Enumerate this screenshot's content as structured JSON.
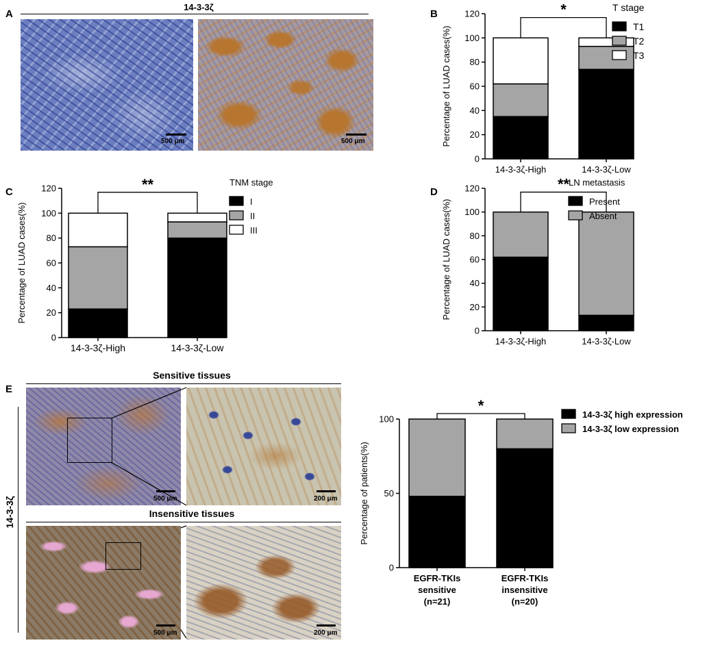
{
  "panel_letters": {
    "A": "A",
    "B": "B",
    "C": "C",
    "D": "D",
    "E": "E"
  },
  "panel_a": {
    "title": "14-3-3ζ",
    "left_scale": "500 μm",
    "right_scale": "500 μm"
  },
  "panel_e": {
    "sensitive_title": "Sensitive tissues",
    "insensitive_title": "Insensitive tissues",
    "side_label": "14-3-3ζ",
    "scales": {
      "s_left": "500 μm",
      "s_right": "200 μm",
      "i_left": "500 μm",
      "i_right": "200 μm"
    }
  },
  "colors": {
    "black": "#000000",
    "gray": "#a5a5a5",
    "white": "#ffffff",
    "ihc_blue": "#5a6fb8",
    "ihc_brown": "#b8742a"
  },
  "chart_data": [
    {
      "id": "B",
      "type": "bar",
      "stacked": true,
      "categories": [
        "14-3-3ζ-High",
        "14-3-3ζ-Low"
      ],
      "series": [
        {
          "name": "T1",
          "color": "#000000",
          "values": [
            35,
            74
          ]
        },
        {
          "name": "T2",
          "color": "#a5a5a5",
          "values": [
            27,
            19
          ]
        },
        {
          "name": "T3",
          "color": "#ffffff",
          "values": [
            38,
            7
          ]
        }
      ],
      "ylabel": "Percentage of LUAD cases(%)",
      "ylim": [
        0,
        120
      ],
      "yticks": [
        0,
        20,
        40,
        60,
        80,
        100,
        120
      ],
      "legend_title": "T stage",
      "significance": "*"
    },
    {
      "id": "C",
      "type": "bar",
      "stacked": true,
      "categories": [
        "14-3-3ζ-High",
        "14-3-3ζ-Low"
      ],
      "series": [
        {
          "name": "I",
          "color": "#000000",
          "values": [
            23,
            80
          ]
        },
        {
          "name": "II",
          "color": "#a5a5a5",
          "values": [
            50,
            13
          ]
        },
        {
          "name": "III",
          "color": "#ffffff",
          "values": [
            27,
            7
          ]
        }
      ],
      "ylabel": "Percentage of LUAD cases(%)",
      "ylim": [
        0,
        120
      ],
      "yticks": [
        0,
        20,
        40,
        60,
        80,
        100,
        120
      ],
      "legend_title": "TNM stage",
      "significance": "**"
    },
    {
      "id": "D",
      "type": "bar",
      "stacked": true,
      "categories": [
        "14-3-3ζ-High",
        "14-3-3ζ-Low"
      ],
      "series": [
        {
          "name": "Present",
          "color": "#000000",
          "values": [
            62,
            13
          ]
        },
        {
          "name": "Absent",
          "color": "#a5a5a5",
          "values": [
            38,
            87
          ]
        }
      ],
      "ylabel": "Percentage of LUAD cases(%)",
      "ylim": [
        0,
        120
      ],
      "yticks": [
        0,
        20,
        40,
        60,
        80,
        100,
        120
      ],
      "legend_title": "LN metastasis",
      "significance": "**"
    },
    {
      "id": "E",
      "type": "bar",
      "stacked": true,
      "categories": [
        [
          "EGFR-TKIs",
          "sensitive",
          "(n=21)"
        ],
        [
          "EGFR-TKIs",
          "insensitive",
          "(n=20)"
        ]
      ],
      "series": [
        {
          "name": "14-3-3ζ high expression",
          "color": "#000000",
          "values": [
            48,
            80
          ]
        },
        {
          "name": "14-3-3ζ low expression",
          "color": "#a5a5a5",
          "values": [
            52,
            20
          ]
        }
      ],
      "ylabel": "Percentage of patients(%)",
      "ylim": [
        0,
        100
      ],
      "yticks": [
        0,
        50,
        100
      ],
      "legend_title": "",
      "significance": "*"
    }
  ]
}
